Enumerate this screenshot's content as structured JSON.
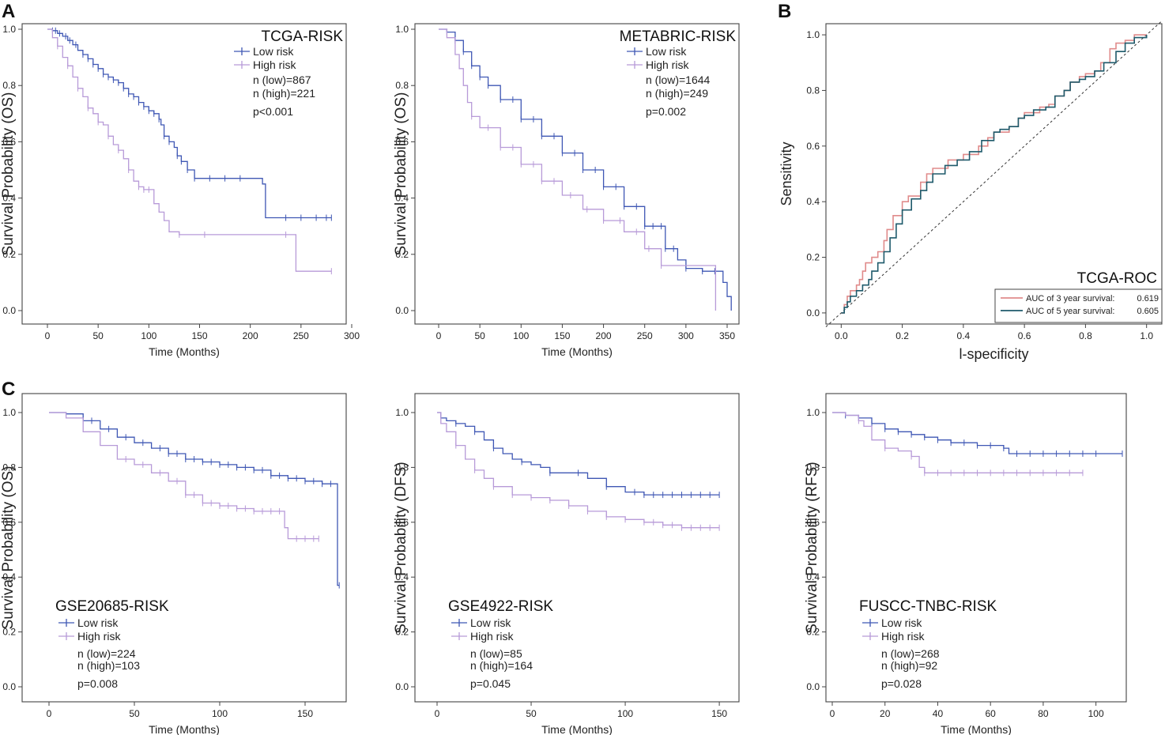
{
  "figure": {
    "panel_labels": [
      "A",
      "B",
      "C"
    ]
  },
  "colors": {
    "low": "#3f57b4",
    "high": "#b79ad8",
    "roc3": "#e08b8b",
    "roc5": "#1e5a6b",
    "axis": "#222222",
    "frame": "#444444"
  },
  "chart_data": [
    {
      "panel": "A",
      "type": "line",
      "title": "TCGA-RISK",
      "xlabel": "Time (Months)",
      "ylabel": "Survival Probability (OS)",
      "xlim": [
        0,
        300
      ],
      "ylim": [
        0,
        1
      ],
      "xticks": [
        0,
        50,
        100,
        150,
        200,
        250,
        300
      ],
      "yticks": [
        0.0,
        0.2,
        0.4,
        0.6,
        0.8,
        1.0
      ],
      "legend": [
        "Low risk",
        "High risk"
      ],
      "legend_position": "top-right",
      "stats": [
        "n (low)=867",
        "n (high)=221",
        "p<0.001"
      ],
      "series": [
        {
          "name": "Low risk",
          "x": [
            0,
            5,
            10,
            15,
            20,
            25,
            30,
            35,
            40,
            45,
            50,
            55,
            60,
            65,
            70,
            75,
            80,
            85,
            90,
            95,
            100,
            105,
            110,
            112,
            115,
            120,
            125,
            128,
            132,
            138,
            145,
            190,
            212,
            215,
            280
          ],
          "y": [
            1.0,
            0.995,
            0.985,
            0.975,
            0.96,
            0.945,
            0.925,
            0.91,
            0.895,
            0.875,
            0.86,
            0.84,
            0.83,
            0.82,
            0.81,
            0.79,
            0.77,
            0.76,
            0.74,
            0.725,
            0.71,
            0.7,
            0.68,
            0.66,
            0.62,
            0.6,
            0.58,
            0.55,
            0.53,
            0.5,
            0.47,
            0.47,
            0.45,
            0.33,
            0.33
          ],
          "censor": [
            5,
            8,
            12,
            18,
            22,
            28,
            35,
            40,
            45,
            50,
            55,
            60,
            65,
            70,
            75,
            80,
            85,
            90,
            95,
            100,
            105,
            110,
            115,
            120,
            128,
            132,
            138,
            145,
            160,
            175,
            190,
            235,
            250,
            265,
            275,
            280
          ]
        },
        {
          "name": "High risk",
          "x": [
            0,
            5,
            10,
            15,
            20,
            25,
            30,
            35,
            40,
            45,
            50,
            55,
            60,
            65,
            70,
            75,
            80,
            85,
            90,
            95,
            100,
            105,
            110,
            115,
            120,
            130,
            240,
            245,
            280
          ],
          "y": [
            1.0,
            0.97,
            0.94,
            0.9,
            0.87,
            0.83,
            0.79,
            0.76,
            0.72,
            0.7,
            0.67,
            0.66,
            0.62,
            0.59,
            0.57,
            0.54,
            0.5,
            0.46,
            0.44,
            0.43,
            0.43,
            0.38,
            0.35,
            0.32,
            0.28,
            0.27,
            0.27,
            0.14,
            0.14
          ],
          "censor": [
            10,
            20,
            30,
            40,
            50,
            60,
            70,
            80,
            90,
            95,
            100,
            130,
            155,
            235,
            280
          ]
        }
      ]
    },
    {
      "panel": "A",
      "type": "line",
      "title": "METABRIC-RISK",
      "xlabel": "Time (Months)",
      "ylabel": "Survival Probability (OS)",
      "xlim": [
        0,
        350
      ],
      "ylim": [
        0,
        1
      ],
      "xticks": [
        0,
        50,
        100,
        150,
        200,
        250,
        300,
        350
      ],
      "yticks": [
        0.0,
        0.2,
        0.4,
        0.6,
        0.8,
        1.0
      ],
      "legend": [
        "Low risk",
        "High risk"
      ],
      "legend_position": "top-right",
      "stats": [
        "n (low)=1644",
        "n (high)=249",
        "p=0.002"
      ],
      "series": [
        {
          "name": "Low risk",
          "x": [
            0,
            10,
            20,
            30,
            40,
            50,
            60,
            75,
            100,
            125,
            150,
            175,
            200,
            225,
            250,
            275,
            290,
            300,
            320,
            335,
            345,
            350,
            355
          ],
          "y": [
            1.0,
            0.99,
            0.96,
            0.92,
            0.87,
            0.83,
            0.8,
            0.75,
            0.68,
            0.62,
            0.56,
            0.5,
            0.44,
            0.37,
            0.3,
            0.22,
            0.18,
            0.15,
            0.14,
            0.14,
            0.1,
            0.05,
            0.0
          ],
          "censor": [
            10,
            20,
            30,
            40,
            50,
            60,
            75,
            90,
            100,
            115,
            125,
            140,
            150,
            165,
            175,
            190,
            200,
            215,
            225,
            240,
            250,
            260,
            270,
            275,
            285,
            300,
            320,
            335
          ]
        },
        {
          "name": "High risk",
          "x": [
            0,
            10,
            20,
            25,
            30,
            35,
            40,
            50,
            75,
            100,
            125,
            150,
            175,
            200,
            225,
            250,
            270,
            300,
            335,
            336
          ],
          "y": [
            1.0,
            0.97,
            0.91,
            0.86,
            0.8,
            0.74,
            0.69,
            0.65,
            0.58,
            0.52,
            0.46,
            0.41,
            0.36,
            0.32,
            0.28,
            0.22,
            0.16,
            0.16,
            0.16,
            0.0
          ],
          "censor": [
            40,
            60,
            75,
            90,
            100,
            115,
            125,
            140,
            160,
            180,
            200,
            220,
            240,
            255,
            270
          ]
        }
      ]
    },
    {
      "panel": "B",
      "type": "line",
      "title": "TCGA-ROC",
      "xlabel": "l-specificity",
      "ylabel": "Sensitivity",
      "xlim": [
        -0.05,
        1.05
      ],
      "ylim": [
        -0.04,
        1.04
      ],
      "xticks": [
        0.0,
        0.2,
        0.4,
        0.6,
        0.8,
        1.0
      ],
      "yticks": [
        0.0,
        0.2,
        0.4,
        0.6,
        0.8,
        1.0
      ],
      "legend_position": "bottom-right",
      "legend": [
        {
          "label": "AUC of 3 year survival:",
          "value": "0.619"
        },
        {
          "label": "AUC of 5 year survival:",
          "value": "0.605"
        }
      ],
      "reference_line": {
        "x": [
          -0.05,
          1.05
        ],
        "y": [
          -0.05,
          1.05
        ]
      },
      "series": [
        {
          "name": "AUC of 3 year survival",
          "x": [
            0.0,
            0.01,
            0.02,
            0.03,
            0.05,
            0.06,
            0.07,
            0.08,
            0.1,
            0.12,
            0.14,
            0.15,
            0.17,
            0.2,
            0.22,
            0.26,
            0.28,
            0.3,
            0.35,
            0.4,
            0.45,
            0.48,
            0.5,
            0.55,
            0.58,
            0.6,
            0.65,
            0.68,
            0.7,
            0.73,
            0.75,
            0.78,
            0.8,
            0.83,
            0.85,
            0.88,
            0.9,
            0.93,
            0.96,
            1.0
          ],
          "y": [
            0.0,
            0.03,
            0.06,
            0.08,
            0.1,
            0.12,
            0.15,
            0.18,
            0.2,
            0.22,
            0.26,
            0.3,
            0.35,
            0.4,
            0.42,
            0.47,
            0.5,
            0.52,
            0.55,
            0.57,
            0.6,
            0.63,
            0.65,
            0.67,
            0.7,
            0.72,
            0.74,
            0.75,
            0.78,
            0.8,
            0.83,
            0.85,
            0.86,
            0.87,
            0.9,
            0.95,
            0.97,
            0.98,
            1.0,
            1.0
          ]
        },
        {
          "name": "AUC of 5 year survival",
          "x": [
            0.0,
            0.01,
            0.02,
            0.03,
            0.05,
            0.07,
            0.09,
            0.1,
            0.12,
            0.14,
            0.16,
            0.18,
            0.2,
            0.23,
            0.26,
            0.28,
            0.3,
            0.34,
            0.38,
            0.42,
            0.46,
            0.5,
            0.52,
            0.55,
            0.58,
            0.6,
            0.63,
            0.67,
            0.7,
            0.73,
            0.75,
            0.78,
            0.8,
            0.83,
            0.86,
            0.9,
            0.93,
            0.96,
            1.0
          ],
          "y": [
            0.0,
            0.02,
            0.04,
            0.06,
            0.08,
            0.1,
            0.12,
            0.15,
            0.18,
            0.22,
            0.27,
            0.32,
            0.37,
            0.41,
            0.44,
            0.47,
            0.5,
            0.53,
            0.55,
            0.58,
            0.62,
            0.65,
            0.66,
            0.67,
            0.7,
            0.71,
            0.73,
            0.74,
            0.78,
            0.8,
            0.83,
            0.84,
            0.85,
            0.87,
            0.9,
            0.94,
            0.97,
            0.99,
            1.0
          ]
        }
      ]
    },
    {
      "panel": "C",
      "type": "line",
      "title": "GSE20685-RISK",
      "xlabel": "Time (Months)",
      "ylabel": "Survival Probability (OS)",
      "xlim": [
        0,
        175
      ],
      "ylim": [
        0,
        1
      ],
      "xticks": [
        0,
        50,
        100,
        150
      ],
      "yticks": [
        0.0,
        0.2,
        0.4,
        0.6,
        0.8,
        1.0
      ],
      "legend": [
        "Low risk",
        "High risk"
      ],
      "legend_position": "bottom-left",
      "stats": [
        "n (low)=224",
        "n (high)=103",
        "p=0.008"
      ],
      "series": [
        {
          "name": "Low risk",
          "x": [
            0,
            10,
            20,
            30,
            40,
            50,
            60,
            70,
            80,
            90,
            100,
            110,
            120,
            130,
            140,
            150,
            160,
            168,
            169,
            170
          ],
          "y": [
            1.0,
            0.995,
            0.97,
            0.94,
            0.91,
            0.89,
            0.87,
            0.85,
            0.83,
            0.82,
            0.81,
            0.8,
            0.79,
            0.77,
            0.76,
            0.75,
            0.74,
            0.74,
            0.37,
            0.37
          ],
          "censor": [
            25,
            35,
            45,
            55,
            65,
            70,
            75,
            80,
            85,
            90,
            95,
            100,
            105,
            110,
            115,
            120,
            125,
            130,
            135,
            140,
            145,
            150,
            155,
            160,
            165,
            170
          ]
        },
        {
          "name": "High risk",
          "x": [
            0,
            10,
            20,
            30,
            40,
            50,
            60,
            70,
            80,
            90,
            100,
            110,
            120,
            130,
            136,
            138,
            140,
            158
          ],
          "y": [
            1.0,
            0.98,
            0.93,
            0.88,
            0.83,
            0.81,
            0.78,
            0.75,
            0.7,
            0.67,
            0.66,
            0.65,
            0.64,
            0.64,
            0.64,
            0.58,
            0.54,
            0.54
          ],
          "censor": [
            45,
            55,
            65,
            75,
            80,
            85,
            90,
            95,
            100,
            105,
            110,
            115,
            120,
            125,
            130,
            135,
            145,
            150,
            155,
            158
          ]
        }
      ]
    },
    {
      "panel": "C",
      "type": "line",
      "title": "GSE4922-RISK",
      "xlabel": "Time (Months)",
      "ylabel": "Survival Probability (DFS)",
      "xlim": [
        0,
        155
      ],
      "ylim": [
        0,
        1
      ],
      "xticks": [
        0,
        50,
        100,
        150
      ],
      "yticks": [
        0.0,
        0.2,
        0.4,
        0.6,
        0.8,
        1.0
      ],
      "legend": [
        "Low risk",
        "High risk"
      ],
      "legend_position": "bottom-left",
      "stats": [
        "n (low)=85",
        "n (high)=164",
        "p=0.045"
      ],
      "series": [
        {
          "name": "Low risk",
          "x": [
            0,
            2,
            5,
            10,
            15,
            20,
            25,
            30,
            35,
            40,
            45,
            50,
            55,
            60,
            70,
            80,
            90,
            100,
            110,
            120,
            150
          ],
          "y": [
            1.0,
            0.98,
            0.97,
            0.96,
            0.95,
            0.93,
            0.9,
            0.87,
            0.85,
            0.83,
            0.82,
            0.81,
            0.8,
            0.78,
            0.78,
            0.76,
            0.73,
            0.71,
            0.7,
            0.7,
            0.7
          ],
          "censor": [
            10,
            20,
            30,
            45,
            60,
            75,
            90,
            105,
            110,
            115,
            120,
            125,
            130,
            135,
            140,
            145,
            150
          ]
        },
        {
          "name": "High risk",
          "x": [
            0,
            2,
            5,
            10,
            15,
            20,
            25,
            30,
            40,
            50,
            60,
            70,
            80,
            90,
            100,
            110,
            120,
            130,
            150
          ],
          "y": [
            1.0,
            0.96,
            0.93,
            0.88,
            0.83,
            0.79,
            0.76,
            0.73,
            0.7,
            0.69,
            0.68,
            0.66,
            0.64,
            0.62,
            0.61,
            0.6,
            0.59,
            0.58,
            0.58
          ],
          "censor": [
            10,
            20,
            30,
            40,
            50,
            60,
            70,
            80,
            90,
            100,
            110,
            115,
            120,
            125,
            130,
            135,
            140,
            145,
            150
          ]
        }
      ]
    },
    {
      "panel": "C",
      "type": "line",
      "title": "FUSCC-TNBC-RISK",
      "xlabel": "Time (Months)",
      "ylabel": "Survival Probability (RFS)",
      "xlim": [
        0,
        110
      ],
      "ylim": [
        0,
        1
      ],
      "xticks": [
        0,
        20,
        40,
        60,
        80,
        100
      ],
      "yticks": [
        0.0,
        0.2,
        0.4,
        0.6,
        0.8,
        1.0
      ],
      "legend": [
        "Low risk",
        "High risk"
      ],
      "legend_position": "bottom-left",
      "stats": [
        "n (low)=268",
        "n (high)=92",
        "p=0.028"
      ],
      "series": [
        {
          "name": "Low risk",
          "x": [
            0,
            5,
            10,
            15,
            20,
            25,
            30,
            35,
            40,
            45,
            50,
            55,
            60,
            65,
            67,
            70,
            110
          ],
          "y": [
            1.0,
            0.99,
            0.98,
            0.96,
            0.94,
            0.93,
            0.92,
            0.91,
            0.9,
            0.89,
            0.89,
            0.88,
            0.88,
            0.87,
            0.85,
            0.85,
            0.85
          ],
          "censor": [
            5,
            10,
            15,
            20,
            25,
            30,
            35,
            40,
            45,
            50,
            55,
            60,
            65,
            70,
            75,
            80,
            85,
            90,
            95,
            100,
            110
          ]
        },
        {
          "name": "High risk",
          "x": [
            0,
            5,
            10,
            12,
            15,
            20,
            25,
            30,
            33,
            35,
            95
          ],
          "y": [
            1.0,
            0.99,
            0.97,
            0.95,
            0.9,
            0.87,
            0.86,
            0.84,
            0.8,
            0.78,
            0.78
          ],
          "censor": [
            10,
            20,
            30,
            35,
            40,
            45,
            50,
            55,
            60,
            65,
            70,
            75,
            80,
            85,
            90,
            95
          ]
        }
      ]
    }
  ]
}
